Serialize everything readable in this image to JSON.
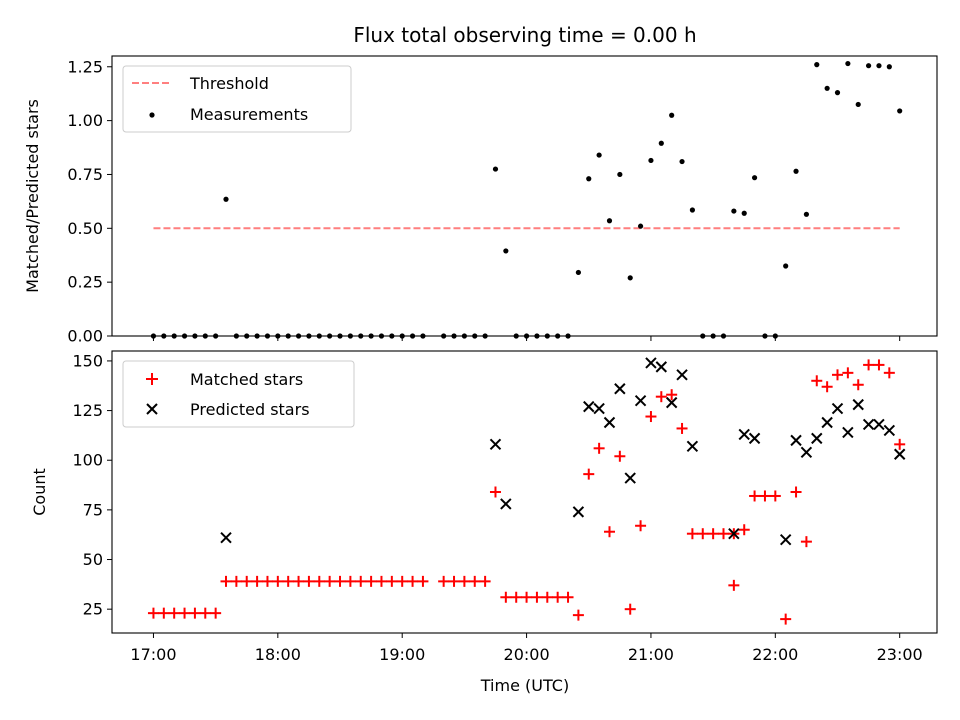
{
  "chart_data": [
    {
      "type": "scatter",
      "title": "Flux total observing time = 0.00 h",
      "xlabel": "",
      "ylabel": "Matched/Predicted stars",
      "xlim": [
        "16:40",
        "23:18"
      ],
      "ylim": [
        0,
        1.3
      ],
      "xticks": [
        "17:00",
        "18:00",
        "19:00",
        "20:00",
        "21:00",
        "22:00",
        "23:00"
      ],
      "yticks": [
        0.0,
        0.25,
        0.5,
        0.75,
        1.0,
        1.25
      ],
      "ytick_labels": [
        "0.00",
        "0.25",
        "0.50",
        "0.75",
        "1.00",
        "1.25"
      ],
      "grid": false,
      "legend": "upper-left",
      "colors": {
        "threshold": "#ff7f7f",
        "measurements": "#000000"
      },
      "series": [
        {
          "name": "Threshold",
          "kind": "dashed-line",
          "points": [
            [
              "17:00",
              0.5
            ],
            [
              "23:00",
              0.5
            ]
          ]
        },
        {
          "name": "Measurements",
          "kind": "dot",
          "points": [
            [
              "17:00",
              0
            ],
            [
              "17:05",
              0
            ],
            [
              "17:10",
              0
            ],
            [
              "17:15",
              0
            ],
            [
              "17:20",
              0
            ],
            [
              "17:25",
              0
            ],
            [
              "17:30",
              0
            ],
            [
              "17:35",
              0.635
            ],
            [
              "17:40",
              0
            ],
            [
              "17:45",
              0
            ],
            [
              "17:50",
              0
            ],
            [
              "17:55",
              0
            ],
            [
              "18:00",
              0
            ],
            [
              "18:05",
              0
            ],
            [
              "18:10",
              0
            ],
            [
              "18:15",
              0
            ],
            [
              "18:20",
              0
            ],
            [
              "18:25",
              0
            ],
            [
              "18:30",
              0
            ],
            [
              "18:35",
              0
            ],
            [
              "18:40",
              0
            ],
            [
              "18:45",
              0
            ],
            [
              "18:50",
              0
            ],
            [
              "18:55",
              0
            ],
            [
              "19:00",
              0
            ],
            [
              "19:05",
              0
            ],
            [
              "19:10",
              0
            ],
            [
              "19:20",
              0
            ],
            [
              "19:25",
              0
            ],
            [
              "19:30",
              0
            ],
            [
              "19:35",
              0
            ],
            [
              "19:40",
              0
            ],
            [
              "19:45",
              0.775
            ],
            [
              "19:50",
              0.395
            ],
            [
              "19:55",
              0
            ],
            [
              "20:00",
              0
            ],
            [
              "20:05",
              0
            ],
            [
              "20:10",
              0
            ],
            [
              "20:15",
              0
            ],
            [
              "20:20",
              0
            ],
            [
              "20:25",
              0.295
            ],
            [
              "20:30",
              0.73
            ],
            [
              "20:35",
              0.84
            ],
            [
              "20:40",
              0.535
            ],
            [
              "20:45",
              0.75
            ],
            [
              "20:50",
              0.27
            ],
            [
              "20:55",
              0.51
            ],
            [
              "21:00",
              0.815
            ],
            [
              "21:05",
              0.895
            ],
            [
              "21:10",
              1.025
            ],
            [
              "21:15",
              0.81
            ],
            [
              "21:20",
              0.585
            ],
            [
              "21:25",
              0
            ],
            [
              "21:30",
              0
            ],
            [
              "21:35",
              0
            ],
            [
              "21:40",
              0.58
            ],
            [
              "21:45",
              0.57
            ],
            [
              "21:50",
              0.735
            ],
            [
              "21:55",
              0
            ],
            [
              "22:00",
              0
            ],
            [
              "22:05",
              0.325
            ],
            [
              "22:10",
              0.765
            ],
            [
              "22:15",
              0.565
            ],
            [
              "22:20",
              1.26
            ],
            [
              "22:25",
              1.15
            ],
            [
              "22:30",
              1.13
            ],
            [
              "22:35",
              1.265
            ],
            [
              "22:40",
              1.075
            ],
            [
              "22:45",
              1.255
            ],
            [
              "22:50",
              1.255
            ],
            [
              "22:55",
              1.25
            ],
            [
              "23:00",
              1.045
            ]
          ]
        }
      ]
    },
    {
      "type": "scatter",
      "title": "",
      "xlabel": "Time (UTC)",
      "ylabel": "Count",
      "xlim": [
        "16:40",
        "23:18"
      ],
      "ylim": [
        13,
        155
      ],
      "xticks": [
        "17:00",
        "18:00",
        "19:00",
        "20:00",
        "21:00",
        "22:00",
        "23:00"
      ],
      "yticks": [
        25,
        50,
        75,
        100,
        125,
        150
      ],
      "ytick_labels": [
        "25",
        "50",
        "75",
        "100",
        "125",
        "150"
      ],
      "grid": false,
      "legend": "upper-left",
      "colors": {
        "matched": "#ff0000",
        "predicted": "#000000"
      },
      "series": [
        {
          "name": "Matched stars",
          "kind": "plus",
          "points": [
            [
              "17:00",
              23
            ],
            [
              "17:05",
              23
            ],
            [
              "17:10",
              23
            ],
            [
              "17:15",
              23
            ],
            [
              "17:20",
              23
            ],
            [
              "17:25",
              23
            ],
            [
              "17:30",
              23
            ],
            [
              "17:35",
              39
            ],
            [
              "17:40",
              39
            ],
            [
              "17:45",
              39
            ],
            [
              "17:50",
              39
            ],
            [
              "17:55",
              39
            ],
            [
              "18:00",
              39
            ],
            [
              "18:05",
              39
            ],
            [
              "18:10",
              39
            ],
            [
              "18:15",
              39
            ],
            [
              "18:20",
              39
            ],
            [
              "18:25",
              39
            ],
            [
              "18:30",
              39
            ],
            [
              "18:35",
              39
            ],
            [
              "18:40",
              39
            ],
            [
              "18:45",
              39
            ],
            [
              "18:50",
              39
            ],
            [
              "18:55",
              39
            ],
            [
              "19:00",
              39
            ],
            [
              "19:05",
              39
            ],
            [
              "19:10",
              39
            ],
            [
              "19:20",
              39
            ],
            [
              "19:25",
              39
            ],
            [
              "19:30",
              39
            ],
            [
              "19:35",
              39
            ],
            [
              "19:40",
              39
            ],
            [
              "19:45",
              84
            ],
            [
              "19:50",
              31
            ],
            [
              "19:55",
              31
            ],
            [
              "20:00",
              31
            ],
            [
              "20:05",
              31
            ],
            [
              "20:10",
              31
            ],
            [
              "20:15",
              31
            ],
            [
              "20:20",
              31
            ],
            [
              "20:25",
              22
            ],
            [
              "20:30",
              93
            ],
            [
              "20:35",
              106
            ],
            [
              "20:40",
              64
            ],
            [
              "20:45",
              102
            ],
            [
              "20:50",
              25
            ],
            [
              "20:55",
              67
            ],
            [
              "21:00",
              122
            ],
            [
              "21:05",
              132
            ],
            [
              "21:10",
              133
            ],
            [
              "21:15",
              116
            ],
            [
              "21:20",
              63
            ],
            [
              "21:25",
              63
            ],
            [
              "21:30",
              63
            ],
            [
              "21:35",
              63
            ],
            [
              "21:40",
              63
            ],
            [
              "21:40",
              37
            ],
            [
              "21:45",
              65
            ],
            [
              "21:50",
              82
            ],
            [
              "21:55",
              82
            ],
            [
              "22:00",
              82
            ],
            [
              "22:05",
              20
            ],
            [
              "22:10",
              84
            ],
            [
              "22:15",
              59
            ],
            [
              "22:20",
              140
            ],
            [
              "22:25",
              137
            ],
            [
              "22:30",
              143
            ],
            [
              "22:35",
              144
            ],
            [
              "22:40",
              138
            ],
            [
              "22:45",
              148
            ],
            [
              "22:50",
              148
            ],
            [
              "22:55",
              144
            ],
            [
              "23:00",
              108
            ]
          ]
        },
        {
          "name": "Predicted stars",
          "kind": "x",
          "points": [
            [
              "17:35",
              61
            ],
            [
              "19:45",
              108
            ],
            [
              "19:50",
              78
            ],
            [
              "20:25",
              74
            ],
            [
              "20:30",
              127
            ],
            [
              "20:35",
              126
            ],
            [
              "20:40",
              119
            ],
            [
              "20:45",
              136
            ],
            [
              "20:50",
              91
            ],
            [
              "20:55",
              130
            ],
            [
              "21:00",
              149
            ],
            [
              "21:05",
              147
            ],
            [
              "21:10",
              129
            ],
            [
              "21:15",
              143
            ],
            [
              "21:20",
              107
            ],
            [
              "21:40",
              63
            ],
            [
              "21:45",
              113
            ],
            [
              "21:50",
              111
            ],
            [
              "22:05",
              60
            ],
            [
              "22:10",
              110
            ],
            [
              "22:15",
              104
            ],
            [
              "22:20",
              111
            ],
            [
              "22:25",
              119
            ],
            [
              "22:30",
              126
            ],
            [
              "22:35",
              114
            ],
            [
              "22:40",
              128
            ],
            [
              "22:45",
              118
            ],
            [
              "22:50",
              118
            ],
            [
              "22:55",
              115
            ],
            [
              "23:00",
              103
            ]
          ]
        }
      ]
    }
  ]
}
